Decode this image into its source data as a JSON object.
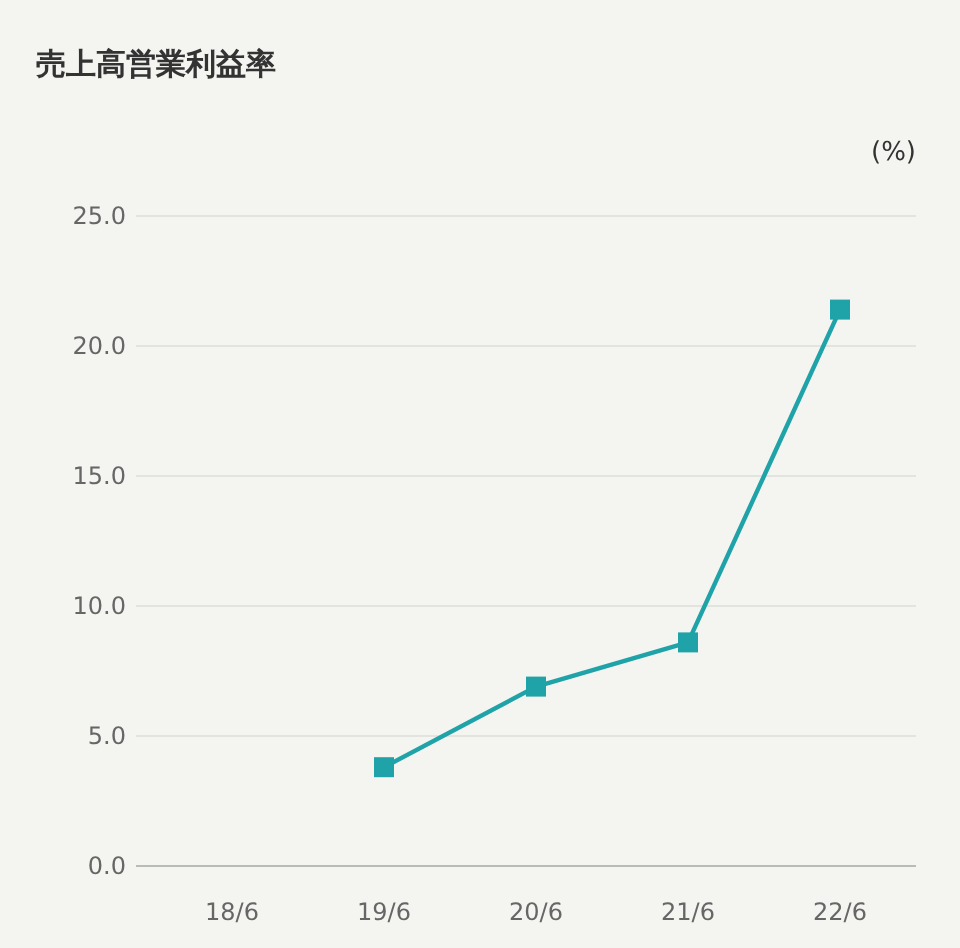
{
  "chart_data": {
    "type": "line",
    "title": "売上高営業利益率",
    "ylabel": "(%)",
    "categories": [
      "18/6",
      "19/6",
      "20/6",
      "21/6",
      "22/6"
    ],
    "series": [
      {
        "color": "#1fa3a8",
        "values": [
          null,
          3.8,
          6.9,
          8.6,
          21.4
        ]
      }
    ],
    "ylim": [
      0,
      25
    ],
    "yticks": [
      {
        "value": 0,
        "label": "0.0"
      },
      {
        "value": 5,
        "label": "5.0"
      },
      {
        "value": 10,
        "label": "10.0"
      },
      {
        "value": 15,
        "label": "15.0"
      },
      {
        "value": 20,
        "label": "20.0"
      },
      {
        "value": 25,
        "label": "25.0"
      }
    ],
    "grid": "y",
    "marker": "square",
    "line_style": "solid"
  }
}
